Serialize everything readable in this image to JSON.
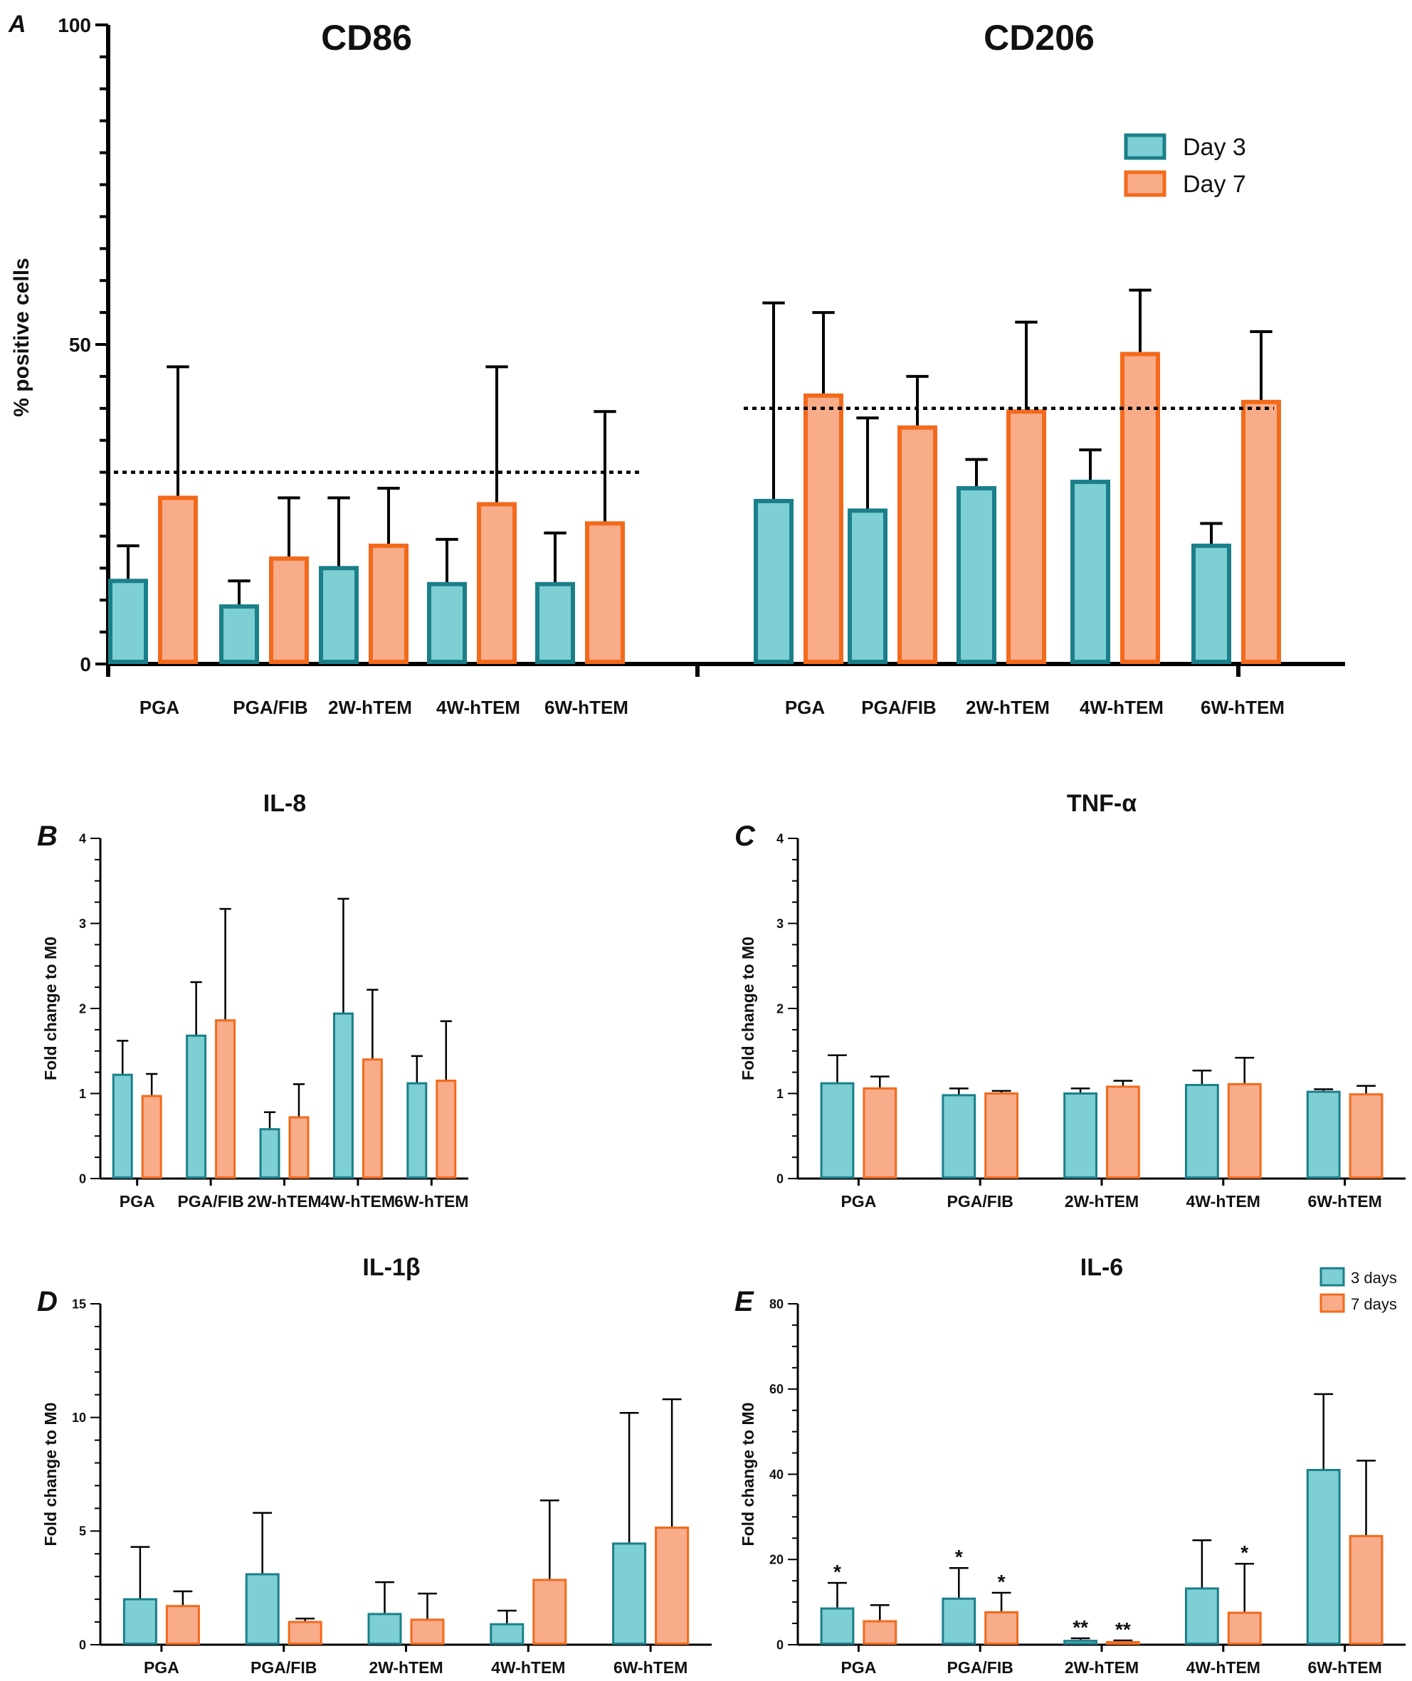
{
  "colors": {
    "teal_fill": "#7dcfd3",
    "teal_stroke": "#1b7f8a",
    "orange_fill": "#f8ac8a",
    "orange_stroke": "#f26a1b"
  },
  "chart_data": [
    {
      "panel": "A",
      "type": "bar",
      "ylabel": "% positive cells",
      "ylim": [
        0,
        100
      ],
      "yticks": [
        "0",
        "50",
        "100"
      ],
      "legend": {
        "placement": "top-right",
        "entries": [
          "Day 3",
          "Day 7"
        ]
      },
      "groups": [
        {
          "title": "CD86",
          "categories": [
            "PGA",
            "PGA/FIB",
            "2W-hTEM",
            "4W-hTEM",
            "6W-hTEM"
          ],
          "series": [
            {
              "name": "Day 3",
              "values": [
                13,
                9,
                15,
                12.5,
                12.5
              ],
              "errors": [
                5.5,
                4,
                11,
                7,
                8
              ]
            },
            {
              "name": "Day 7",
              "values": [
                26,
                16.5,
                18.5,
                25,
                22
              ],
              "errors": [
                20.5,
                9.5,
                9,
                21.5,
                17.5
              ]
            }
          ],
          "reference_line": 30
        },
        {
          "title": "CD206",
          "categories": [
            "PGA",
            "PGA/FIB",
            "2W-hTEM",
            "4W-hTEM",
            "6W-hTEM"
          ],
          "series": [
            {
              "name": "Day 3",
              "values": [
                25.5,
                24,
                27.5,
                28.5,
                18.5
              ],
              "errors": [
                31,
                14.5,
                4.5,
                5,
                3.5
              ]
            },
            {
              "name": "Day 7",
              "values": [
                42,
                37,
                39.5,
                48.5,
                41
              ],
              "errors": [
                13,
                8,
                14,
                10,
                11
              ]
            }
          ],
          "reference_line": 40
        }
      ]
    },
    {
      "panel": "B",
      "type": "bar",
      "title": "IL-8",
      "ylabel": "Fold change to M0",
      "ylim": [
        0,
        4
      ],
      "yticks": [
        "0",
        "1",
        "2",
        "3",
        "4"
      ],
      "categories": [
        "PGA",
        "PGA/FIB",
        "2W-hTEM",
        "4W-hTEM",
        "6W-hTEM"
      ],
      "series": [
        {
          "name": "3 days",
          "values": [
            1.22,
            1.68,
            0.58,
            1.94,
            1.12
          ],
          "errors": [
            0.4,
            0.63,
            0.2,
            1.35,
            0.32
          ]
        },
        {
          "name": "7 days",
          "values": [
            0.97,
            1.86,
            0.72,
            1.4,
            1.15
          ],
          "errors": [
            0.26,
            1.31,
            0.39,
            0.82,
            0.7
          ]
        }
      ]
    },
    {
      "panel": "C",
      "type": "bar",
      "title": "TNF-α",
      "ylabel": "Fold change to M0",
      "ylim": [
        0,
        4
      ],
      "yticks": [
        "0",
        "1",
        "2",
        "3",
        "4"
      ],
      "categories": [
        "PGA",
        "PGA/FIB",
        "2W-hTEM",
        "4W-hTEM",
        "6W-hTEM"
      ],
      "series": [
        {
          "name": "3 days",
          "values": [
            1.12,
            0.98,
            1.0,
            1.1,
            1.02
          ],
          "errors": [
            0.33,
            0.08,
            0.06,
            0.17,
            0.03
          ]
        },
        {
          "name": "7 days",
          "values": [
            1.06,
            1.0,
            1.08,
            1.11,
            0.99
          ],
          "errors": [
            0.14,
            0.03,
            0.07,
            0.31,
            0.1
          ]
        }
      ]
    },
    {
      "panel": "D",
      "type": "bar",
      "title": "IL-1β",
      "ylabel": "Fold change to M0",
      "ylim": [
        0,
        15
      ],
      "yticks": [
        "0",
        "5",
        "10",
        "15"
      ],
      "categories": [
        "PGA",
        "PGA/FIB",
        "2W-hTEM",
        "4W-hTEM",
        "6W-hTEM"
      ],
      "series": [
        {
          "name": "3 days",
          "values": [
            2.0,
            3.1,
            1.35,
            0.9,
            4.45
          ],
          "errors": [
            2.3,
            2.7,
            1.4,
            0.6,
            5.75
          ]
        },
        {
          "name": "7 days",
          "values": [
            1.7,
            1.0,
            1.1,
            2.85,
            5.15
          ],
          "errors": [
            0.65,
            0.15,
            1.15,
            3.5,
            5.65
          ]
        }
      ]
    },
    {
      "panel": "E",
      "type": "bar",
      "title": "IL-6",
      "ylabel": "Fold change to M0",
      "ylim": [
        0,
        80
      ],
      "yticks": [
        "0",
        "20",
        "40",
        "60",
        "80"
      ],
      "legend": {
        "placement": "top-right",
        "entries": [
          "3 days",
          "7 days"
        ]
      },
      "categories": [
        "PGA",
        "PGA/FIB",
        "2W-hTEM",
        "4W-hTEM",
        "6W-hTEM"
      ],
      "series": [
        {
          "name": "3 days",
          "values": [
            8.5,
            10.8,
            0.9,
            13.2,
            41.0
          ],
          "errors": [
            6.0,
            7.2,
            0.6,
            11.3,
            17.8
          ],
          "annotations": [
            "*",
            "*",
            "**",
            "",
            ""
          ]
        },
        {
          "name": "7 days",
          "values": [
            5.5,
            7.6,
            0.6,
            7.5,
            25.5
          ],
          "errors": [
            3.8,
            4.6,
            0.4,
            11.5,
            17.7
          ],
          "annotations": [
            "",
            "*",
            "**",
            "*",
            ""
          ]
        }
      ]
    }
  ]
}
